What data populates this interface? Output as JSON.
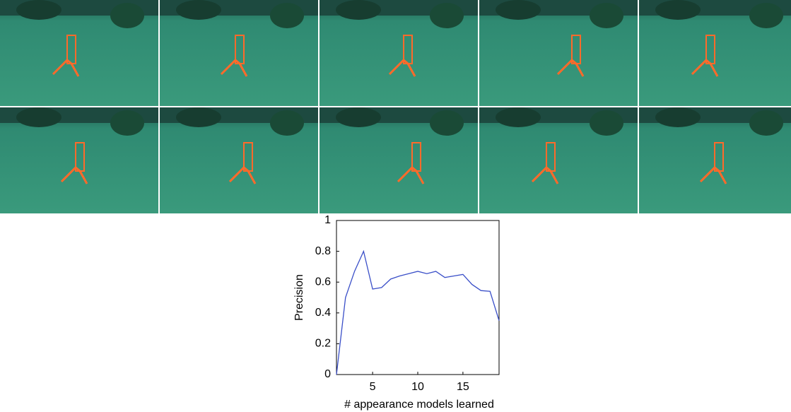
{
  "chart_data": {
    "type": "line",
    "xlabel": "# appearance models learned",
    "ylabel": "Precision",
    "x": [
      1,
      2,
      3,
      4,
      5,
      6,
      7,
      8,
      9,
      10,
      11,
      12,
      13,
      14,
      15,
      16,
      17,
      18,
      19
    ],
    "series": [
      {
        "color": "#3a4fc8",
        "values": [
          0,
          0.5,
          0.67,
          0.8,
          0.555,
          0.565,
          0.62,
          0.64,
          0.655,
          0.67,
          0.655,
          0.67,
          0.63,
          0.64,
          0.65,
          0.585,
          0.545,
          0.54,
          0.35
        ]
      }
    ],
    "xlim": [
      1,
      19
    ],
    "xticks": [
      5,
      10,
      15
    ],
    "ylim": [
      0,
      1
    ],
    "yticks": [
      0,
      0.2,
      0.4,
      0.6,
      0.8,
      1
    ]
  }
}
